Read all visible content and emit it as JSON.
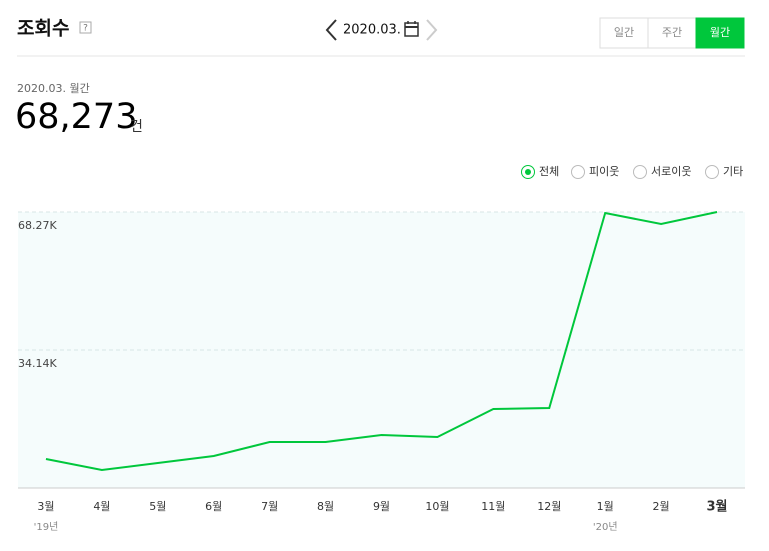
{
  "header": {
    "title": "조회수",
    "help": "?"
  },
  "date_nav": {
    "date": "2020.03."
  },
  "tabs": [
    "일간",
    "주간",
    "월간"
  ],
  "summary": {
    "period": "2020.03. 월간",
    "value": "68,273",
    "unit": "건"
  },
  "filters": [
    "전체",
    "피이웃",
    "서로이웃",
    "기타"
  ],
  "chart_data": {
    "type": "line",
    "categories": [
      "3월",
      "4월",
      "5월",
      "6월",
      "7월",
      "8월",
      "9월",
      "10월",
      "11월",
      "12월",
      "1월",
      "2월",
      "3월"
    ],
    "year_labels": [
      "'19년",
      null,
      null,
      null,
      null,
      null,
      null,
      null,
      null,
      null,
      "'20년",
      null,
      null
    ],
    "series": [
      {
        "color": "#00c73c",
        "values": [
          7170,
          4450,
          6180,
          7920,
          11380,
          11380,
          13110,
          12620,
          19540,
          19790,
          68020,
          65300,
          68273
        ]
      }
    ],
    "ylim": [
      0,
      68270
    ],
    "yticks": [
      {
        "value": 34140,
        "label": "34.14K"
      },
      {
        "value": 68270,
        "label": "68.27K"
      }
    ],
    "grid": true
  }
}
